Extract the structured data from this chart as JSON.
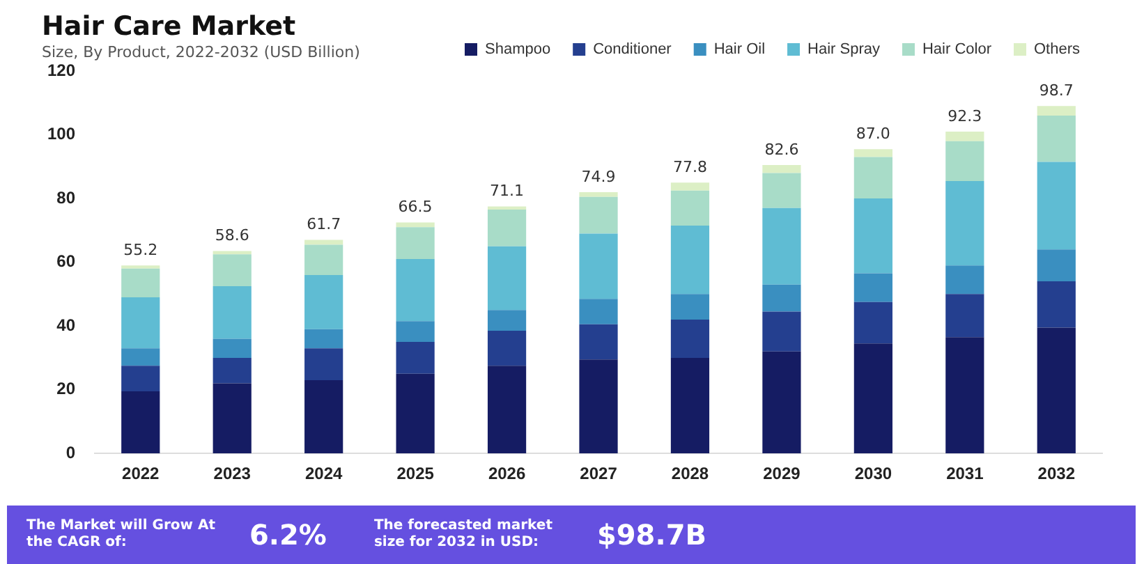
{
  "chart_data": {
    "type": "bar",
    "title": "Hair Care Market",
    "subtitle": "Size, By Product, 2022-2032 (USD Billion)",
    "stacked": true,
    "legend": "top right",
    "grid": false,
    "categories": [
      "2022",
      "2023",
      "2024",
      "2025",
      "2026",
      "2027",
      "2028",
      "2029",
      "2030",
      "2031",
      "2032"
    ],
    "ylim": [
      0,
      120
    ],
    "yticks": [
      0,
      20,
      40,
      60,
      80,
      100,
      120
    ],
    "series": [
      {
        "name": "Shampoo",
        "color": "#151c63",
        "values": [
          19.5,
          22,
          23,
          25,
          27.5,
          29.5,
          30,
          32,
          34.5,
          36.5,
          39.5
        ]
      },
      {
        "name": "Conditioner",
        "color": "#243f8f",
        "values": [
          8,
          8,
          10,
          10,
          11,
          11,
          12,
          12.5,
          13,
          13.5,
          14.5
        ]
      },
      {
        "name": "Hair Oil",
        "color": "#3a8fc0",
        "values": [
          5.5,
          6,
          6,
          6.5,
          6.5,
          8,
          8,
          8.5,
          9,
          9,
          10
        ]
      },
      {
        "name": "Hair Spray",
        "color": "#5fbcd3",
        "values": [
          16,
          16.5,
          17,
          19.5,
          20,
          20.5,
          21.5,
          24,
          23.5,
          26.5,
          27.5
        ]
      },
      {
        "name": "Hair Color",
        "color": "#a8dcc8",
        "values": [
          9,
          10,
          9.5,
          10,
          11.5,
          11.5,
          11,
          11,
          13,
          12.5,
          14.5
        ]
      },
      {
        "name": "Others",
        "color": "#dcefc5",
        "values": [
          1,
          1,
          1.5,
          1.5,
          1,
          1.5,
          2.5,
          2.5,
          2.5,
          3,
          3
        ]
      }
    ],
    "annotations": [
      "The Market will Grow At the CAGR of:",
      "6.2%",
      "The forecasted market size for 2032 in USD:",
      "$98.7B",
      {
        "text": "55.2",
        "x": "2022",
        "y": 59
      },
      {
        "text": "58.6",
        "x": "2023",
        "y": 63.5
      },
      {
        "text": "61.7",
        "x": "2024",
        "y": 67
      },
      {
        "text": "66.5",
        "x": "2025",
        "y": 72.5
      },
      {
        "text": "71.1",
        "x": "2026",
        "y": 77.5
      },
      {
        "text": "74.9",
        "x": "2027",
        "y": 82
      },
      {
        "text": "77.8",
        "x": "2028",
        "y": 85
      },
      {
        "text": "82.6",
        "x": "2029",
        "y": 90.5
      },
      {
        "text": "87.0",
        "x": "2030",
        "y": 95.5
      },
      {
        "text": "92.3",
        "x": "2031",
        "y": 101
      },
      {
        "text": "98.7",
        "x": "2032",
        "y": 109
      }
    ]
  }
}
